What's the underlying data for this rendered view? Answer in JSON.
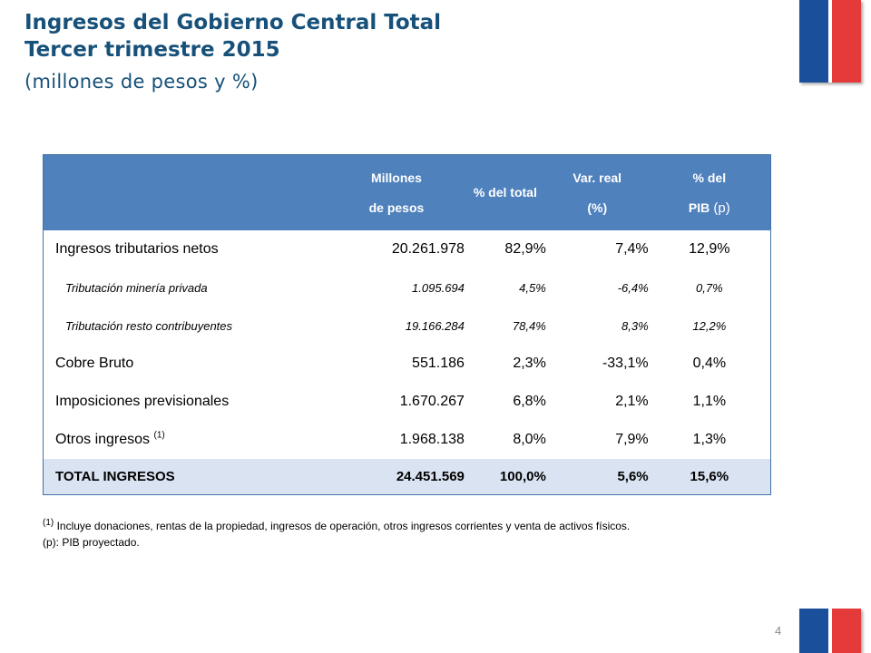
{
  "header": {
    "title_line1": "Ingresos del Gobierno Central Total",
    "title_line2": "Tercer trimestre 2015",
    "subtitle": "(millones de pesos y %)"
  },
  "colors": {
    "title": "#17517a",
    "header_bg": "#4f81bd",
    "total_bg": "#d9e3f1",
    "flag_blue": "#1a4f9c",
    "flag_red": "#e53a3a"
  },
  "table": {
    "headers": {
      "col1_line1": "Millones",
      "col1_line2": "de pesos",
      "col2": "% del total",
      "col3_line1": "Var. real",
      "col3_line2": "(%)",
      "col4_line1": "% del",
      "col4_line2_bold": "PIB",
      "col4_line2_rest": " (p)"
    },
    "rows": [
      {
        "label": "Ingresos tributarios netos",
        "millones": "20.261.978",
        "pct_total": "82,9%",
        "var_real": "7,4%",
        "pct_pib": "12,9%"
      },
      {
        "label": "Tributación minería privada",
        "millones": "1.095.694",
        "pct_total": "4,5%",
        "var_real": "-6,4%",
        "pct_pib": "0,7%"
      },
      {
        "label": "Tributación resto contribuyentes",
        "millones": "19.166.284",
        "pct_total": "78,4%",
        "var_real": "8,3%",
        "pct_pib": "12,2%"
      },
      {
        "label": "Cobre Bruto",
        "millones": "551.186",
        "pct_total": "2,3%",
        "var_real": "-33,1%",
        "pct_pib": "0,4%"
      },
      {
        "label": "Imposiciones previsionales",
        "millones": "1.670.267",
        "pct_total": "6,8%",
        "var_real": "2,1%",
        "pct_pib": "1,1%"
      },
      {
        "label": "Otros ingresos ",
        "label_sup": "(1)",
        "millones": "1.968.138",
        "pct_total": "8,0%",
        "var_real": "7,9%",
        "pct_pib": "1,3%"
      }
    ],
    "total": {
      "label": "TOTAL INGRESOS",
      "millones": "24.451.569",
      "pct_total": "100,0%",
      "var_real": "5,6%",
      "pct_pib": "15,6%"
    }
  },
  "notes": {
    "note1_sup": "(1)",
    "note1_text": " Incluye donaciones, rentas de la propiedad, ingresos de operación, otros ingresos corrientes y venta de activos físicos.",
    "note2": "(p): PIB proyectado."
  },
  "page_number": "4"
}
